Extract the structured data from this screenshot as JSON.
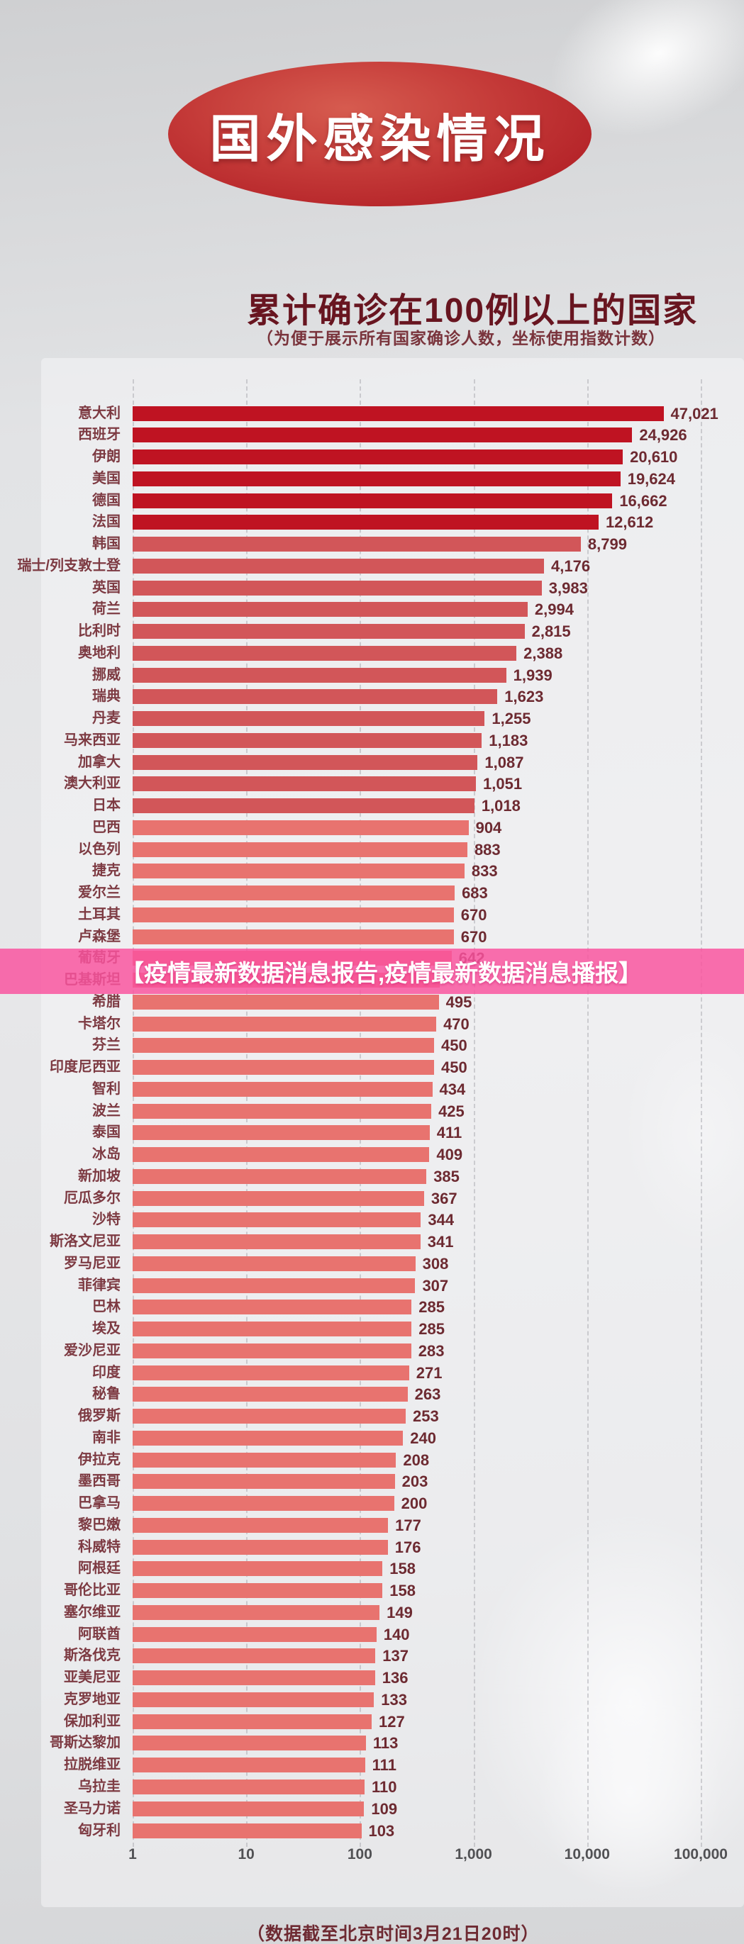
{
  "page": {
    "badge_title": "国外感染情况",
    "heading": "累计确诊在100例以上的国家",
    "subheading": "（为便于展示所有国家确诊人数，坐标使用指数计数）",
    "overlay_banner": "【疫情最新数据消息报告,疫情最新数据消息播报】",
    "footer_note": "（数据截至北京时间3月21日20时）"
  },
  "colors": {
    "badge_red": "#b52429",
    "banner_pink": "#f9549e",
    "bar_dark": "#bf1322",
    "bar_mid": "#d25659",
    "bar_light": "#e8736f",
    "heading_maroon": "#681520",
    "label_maroon": "#7d3a42",
    "value_maroon": "#6d2a31"
  },
  "chart_data": {
    "type": "bar",
    "orientation": "horizontal",
    "x_scale": "log10",
    "x_range": [
      1,
      100000
    ],
    "grid": "vertical-dashed",
    "axis_ticks": [
      "1",
      "10",
      "100",
      "1,000",
      "10,000",
      "100,000"
    ],
    "title": "累计确诊在100例以上的国家",
    "note": "（为便于展示所有国家确诊人数，坐标使用指数计数）",
    "color_tiers": {
      "gte_10000": "#bf1322",
      "gte_1000": "#d25659",
      "lt_1000": "#e8736f"
    },
    "rows": [
      {
        "label": "意大利",
        "value": 47021,
        "value_label": "47,021"
      },
      {
        "label": "西班牙",
        "value": 24926,
        "value_label": "24,926"
      },
      {
        "label": "伊朗",
        "value": 20610,
        "value_label": "20,610"
      },
      {
        "label": "美国",
        "value": 19624,
        "value_label": "19,624"
      },
      {
        "label": "德国",
        "value": 16662,
        "value_label": "16,662"
      },
      {
        "label": "法国",
        "value": 12612,
        "value_label": "12,612"
      },
      {
        "label": "韩国",
        "value": 8799,
        "value_label": "8,799"
      },
      {
        "label": "瑞士/列支敦士登",
        "value": 4176,
        "value_label": "4,176"
      },
      {
        "label": "英国",
        "value": 3983,
        "value_label": "3,983"
      },
      {
        "label": "荷兰",
        "value": 2994,
        "value_label": "2,994"
      },
      {
        "label": "比利时",
        "value": 2815,
        "value_label": "2,815"
      },
      {
        "label": "奥地利",
        "value": 2388,
        "value_label": "2,388"
      },
      {
        "label": "挪威",
        "value": 1939,
        "value_label": "1,939"
      },
      {
        "label": "瑞典",
        "value": 1623,
        "value_label": "1,623"
      },
      {
        "label": "丹麦",
        "value": 1255,
        "value_label": "1,255"
      },
      {
        "label": "马来西亚",
        "value": 1183,
        "value_label": "1,183"
      },
      {
        "label": "加拿大",
        "value": 1087,
        "value_label": "1,087"
      },
      {
        "label": "澳大利亚",
        "value": 1051,
        "value_label": "1,051"
      },
      {
        "label": "日本",
        "value": 1018,
        "value_label": "1,018"
      },
      {
        "label": "巴西",
        "value": 904,
        "value_label": "904"
      },
      {
        "label": "以色列",
        "value": 883,
        "value_label": "883"
      },
      {
        "label": "捷克",
        "value": 833,
        "value_label": "833"
      },
      {
        "label": "爱尔兰",
        "value": 683,
        "value_label": "683"
      },
      {
        "label": "土耳其",
        "value": 670,
        "value_label": "670"
      },
      {
        "label": "卢森堡",
        "value": 670,
        "value_label": "670"
      },
      {
        "label": "葡萄牙",
        "value": 642,
        "value_label": "642"
      },
      {
        "label": "巴基斯坦",
        "value": 501,
        "value_label": ""
      },
      {
        "label": "希腊",
        "value": 495,
        "value_label": "495"
      },
      {
        "label": "卡塔尔",
        "value": 470,
        "value_label": "470"
      },
      {
        "label": "芬兰",
        "value": 450,
        "value_label": "450"
      },
      {
        "label": "印度尼西亚",
        "value": 450,
        "value_label": "450"
      },
      {
        "label": "智利",
        "value": 434,
        "value_label": "434"
      },
      {
        "label": "波兰",
        "value": 425,
        "value_label": "425"
      },
      {
        "label": "泰国",
        "value": 411,
        "value_label": "411"
      },
      {
        "label": "冰岛",
        "value": 409,
        "value_label": "409"
      },
      {
        "label": "新加坡",
        "value": 385,
        "value_label": "385"
      },
      {
        "label": "厄瓜多尔",
        "value": 367,
        "value_label": "367"
      },
      {
        "label": "沙特",
        "value": 344,
        "value_label": "344"
      },
      {
        "label": "斯洛文尼亚",
        "value": 341,
        "value_label": "341"
      },
      {
        "label": "罗马尼亚",
        "value": 308,
        "value_label": "308"
      },
      {
        "label": "菲律宾",
        "value": 307,
        "value_label": "307"
      },
      {
        "label": "巴林",
        "value": 285,
        "value_label": "285"
      },
      {
        "label": "埃及",
        "value": 285,
        "value_label": "285"
      },
      {
        "label": "爱沙尼亚",
        "value": 283,
        "value_label": "283"
      },
      {
        "label": "印度",
        "value": 271,
        "value_label": "271"
      },
      {
        "label": "秘鲁",
        "value": 263,
        "value_label": "263"
      },
      {
        "label": "俄罗斯",
        "value": 253,
        "value_label": "253"
      },
      {
        "label": "南非",
        "value": 240,
        "value_label": "240"
      },
      {
        "label": "伊拉克",
        "value": 208,
        "value_label": "208"
      },
      {
        "label": "墨西哥",
        "value": 203,
        "value_label": "203"
      },
      {
        "label": "巴拿马",
        "value": 200,
        "value_label": "200"
      },
      {
        "label": "黎巴嫩",
        "value": 177,
        "value_label": "177"
      },
      {
        "label": "科威特",
        "value": 176,
        "value_label": "176"
      },
      {
        "label": "阿根廷",
        "value": 158,
        "value_label": "158"
      },
      {
        "label": "哥伦比亚",
        "value": 158,
        "value_label": "158"
      },
      {
        "label": "塞尔维亚",
        "value": 149,
        "value_label": "149"
      },
      {
        "label": "阿联酋",
        "value": 140,
        "value_label": "140"
      },
      {
        "label": "斯洛伐克",
        "value": 137,
        "value_label": "137"
      },
      {
        "label": "亚美尼亚",
        "value": 136,
        "value_label": "136"
      },
      {
        "label": "克罗地亚",
        "value": 133,
        "value_label": "133"
      },
      {
        "label": "保加利亚",
        "value": 127,
        "value_label": "127"
      },
      {
        "label": "哥斯达黎加",
        "value": 113,
        "value_label": "113"
      },
      {
        "label": "拉脱维亚",
        "value": 111,
        "value_label": "111"
      },
      {
        "label": "乌拉圭",
        "value": 110,
        "value_label": "110"
      },
      {
        "label": "圣马力诺",
        "value": 109,
        "value_label": "109"
      },
      {
        "label": "匈牙利",
        "value": 103,
        "value_label": "103"
      }
    ]
  }
}
